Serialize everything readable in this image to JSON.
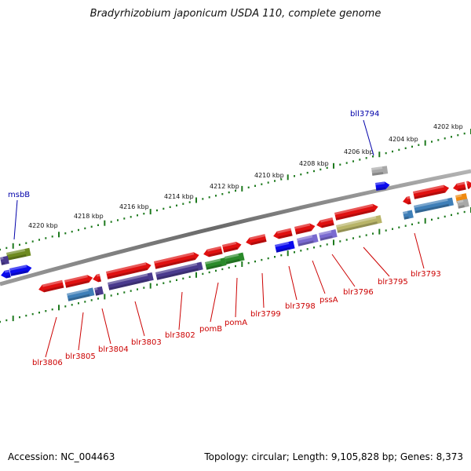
{
  "header": {
    "title": "Bradyrhizobium japonicum USDA 110, complete genome"
  },
  "footer": {
    "accession": "Accession: NC_004463",
    "summary": "Topology: circular; Length: 9,105,828 bp; Genes: 8,373"
  },
  "colors": {
    "red": "#e01010",
    "blue": "#0a0aee",
    "slate": "#3f7fb8",
    "purple": "#4a3a8e",
    "lavender": "#7a6ad0",
    "green": "#2a8a2a",
    "olive": "#6e8a20",
    "khaki": "#b8b468",
    "gray": "#a8a8a8",
    "orange": "#f08a10",
    "label_red": "#cc0000",
    "label_blue": "#0000aa",
    "tick_green": "#1e7a1e"
  },
  "kbp_labels": [
    "4202 kbp",
    "4204 kbp",
    "4206 kbp",
    "4208 kbp",
    "4210 kbp",
    "4212 kbp",
    "4214 kbp",
    "4216 kbp",
    "4218 kbp",
    "4220 kbp"
  ],
  "genes_top": [
    "bll3794",
    "msbB"
  ],
  "genes_bottom": [
    "blr3793",
    "blr3795",
    "blr3796",
    "pssA",
    "blr3798",
    "blr3799",
    "pomA",
    "pomB",
    "blr3802",
    "blr3803",
    "blr3804",
    "blr3805",
    "blr3806"
  ]
}
